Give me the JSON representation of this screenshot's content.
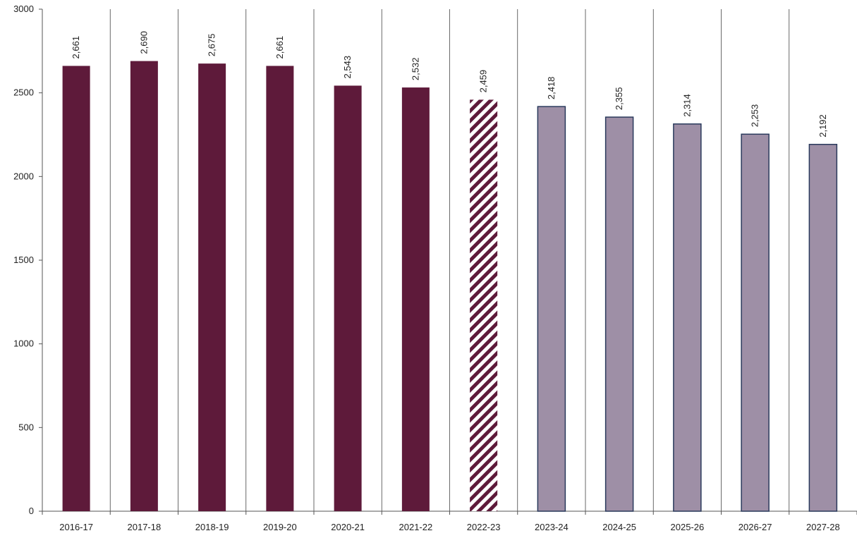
{
  "chart_data": {
    "type": "bar",
    "categories": [
      "2016-17",
      "2017-18",
      "2018-19",
      "2019-20",
      "2020-21",
      "2021-22",
      "2022-23",
      "2023-24",
      "2024-25",
      "2025-26",
      "2026-27",
      "2027-28"
    ],
    "values": [
      2661,
      2690,
      2675,
      2661,
      2543,
      2532,
      2459,
      2418,
      2355,
      2314,
      2253,
      2192
    ],
    "value_labels": [
      "2,661",
      "2,690",
      "2,675",
      "2,661",
      "2,543",
      "2,532",
      "2,459",
      "2,418",
      "2,355",
      "2,314",
      "2,253",
      "2,192"
    ],
    "bar_styles": [
      "actual",
      "actual",
      "actual",
      "actual",
      "actual",
      "actual",
      "hatched",
      "projected",
      "projected",
      "projected",
      "projected",
      "projected"
    ],
    "y_ticks": [
      0,
      500,
      1000,
      1500,
      2000,
      2500,
      3000
    ],
    "ylim": [
      0,
      3000
    ],
    "title": "",
    "xlabel": "",
    "ylabel": "",
    "grid": "vertical category separators",
    "legend": "none"
  },
  "colors": {
    "actual": "#5e1a3a",
    "projected_fill": "#9e8fa6",
    "projected_stroke": "#2a3a5c",
    "hatch": "#5e1a3a",
    "axis": "#555555",
    "gridline": "#444444"
  }
}
